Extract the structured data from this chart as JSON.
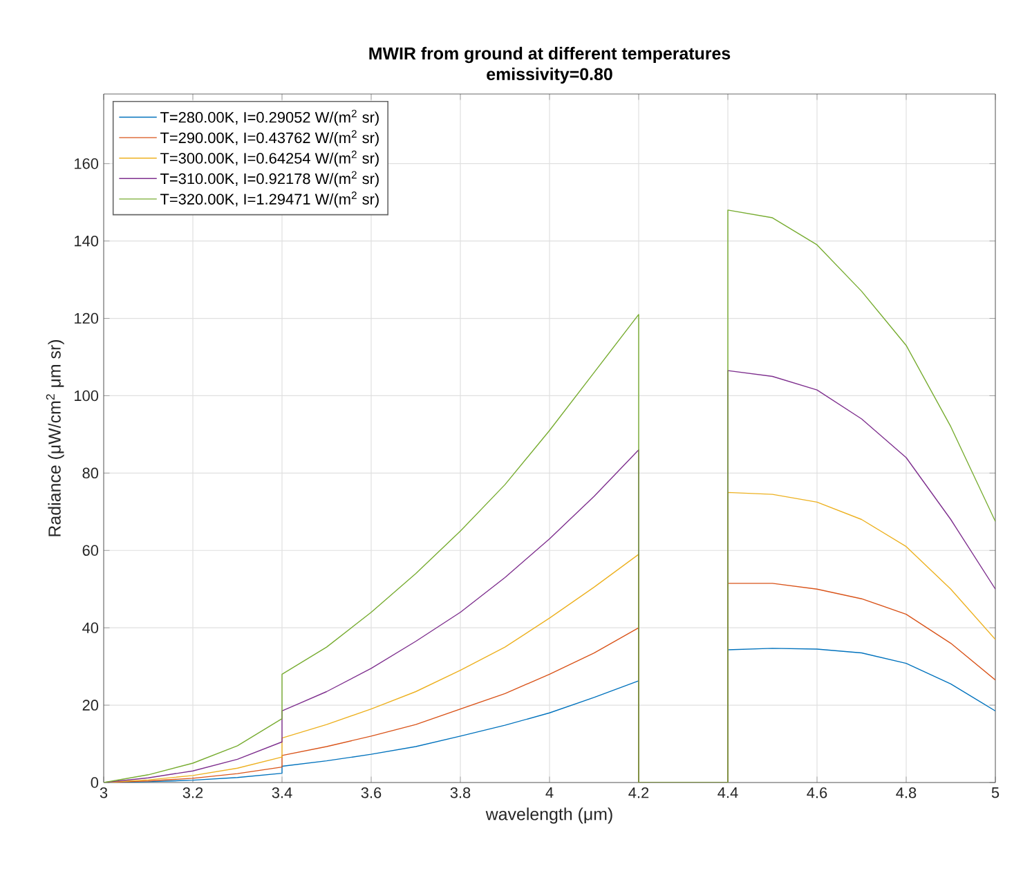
{
  "chart_data": {
    "type": "line",
    "title": "MWIR from ground at different temperatures",
    "subtitle": "emissivity=0.80",
    "xlabel": "wavelength (μm)",
    "ylabel": "Radiance (μW/cm$^{2}$ μm sr)",
    "x": [
      3,
      3.1,
      3.2,
      3.3,
      3.4,
      3.4,
      3.5,
      3.6,
      3.7,
      3.8,
      3.9,
      4.0,
      4.1,
      4.2,
      4.2,
      4.4,
      4.4,
      4.5,
      4.6,
      4.7,
      4.8,
      4.9,
      5.0
    ],
    "series": [
      {
        "name": "T=280.00K, I=0.29052 W/(m$^{2}$ sr)",
        "color": "#0072bd",
        "values": [
          0,
          0.2,
          0.6,
          1.3,
          2.4,
          4.2,
          5.6,
          7.3,
          9.3,
          12,
          14.8,
          18,
          22,
          26.3,
          0,
          0,
          34.3,
          34.7,
          34.5,
          33.5,
          30.8,
          25.5,
          18.5
        ]
      },
      {
        "name": "T=290.00K, I=0.43762 W/(m$^{2}$ sr)",
        "color": "#d95319",
        "values": [
          0,
          0.4,
          1.1,
          2.3,
          4,
          7,
          9.3,
          12,
          15,
          19,
          23,
          28,
          33.5,
          40,
          0,
          0,
          51.5,
          51.5,
          50,
          47.5,
          43.5,
          36,
          26.5
        ]
      },
      {
        "name": "T=300.00K, I=0.64254 W/(m$^{2}$ sr)",
        "color": "#edb120",
        "values": [
          0,
          0.7,
          1.8,
          3.7,
          6.6,
          11.5,
          15,
          19,
          23.5,
          29,
          35,
          42.5,
          50.5,
          59,
          0,
          0,
          75,
          74.5,
          72.5,
          68,
          61,
          50,
          37
        ]
      },
      {
        "name": "T=310.00K, I=0.92178 W/(m$^{2}$ sr)",
        "color": "#7e2f8e",
        "values": [
          0,
          1.2,
          3,
          6,
          10.5,
          18.5,
          23.5,
          29.5,
          36.5,
          44,
          53,
          63,
          74,
          86,
          0,
          0,
          106.5,
          105,
          101.5,
          94,
          84,
          68,
          50
        ]
      },
      {
        "name": "T=320.00K, I=1.29471 W/(m$^{2}$ sr)",
        "color": "#77ac30",
        "values": [
          0,
          2,
          5,
          9.5,
          16.5,
          28,
          35,
          44,
          54,
          65,
          77,
          91,
          106,
          121,
          0,
          0,
          148,
          146,
          139,
          127,
          113,
          92,
          67.5
        ]
      }
    ],
    "xlim": [
      3,
      5
    ],
    "ylim": [
      0,
      178
    ],
    "xticks": [
      3,
      3.2,
      3.4,
      3.6,
      3.8,
      4,
      4.2,
      4.4,
      4.6,
      4.8,
      5
    ],
    "yticks": [
      0,
      20,
      40,
      60,
      80,
      100,
      120,
      140,
      160
    ],
    "grid": true,
    "legend": "top left",
    "marker": "none",
    "line_style": "solid"
  }
}
